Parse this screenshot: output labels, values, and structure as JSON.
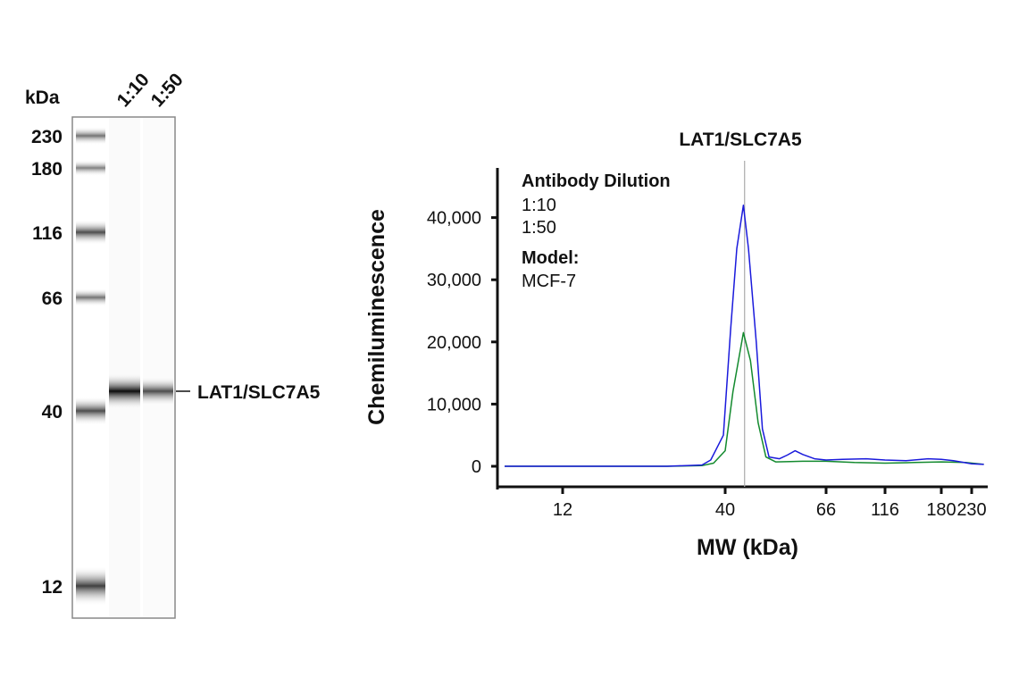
{
  "blot": {
    "unit_label": "kDa",
    "lane_labels": [
      "1:10",
      "1:50"
    ],
    "ladder": [
      "230",
      "180",
      "116",
      "66",
      "40",
      "12"
    ],
    "band_label": "LAT1/SLC7A5"
  },
  "chart_data": {
    "type": "line",
    "title": "LAT1/SLC7A5",
    "xlabel": "MW (kDa)",
    "ylabel": "Chemiluminescence",
    "x_ticks": [
      "12",
      "40",
      "66",
      "116",
      "180",
      "230"
    ],
    "y_ticks": [
      "0",
      "10,000",
      "20,000",
      "30,000",
      "40,000"
    ],
    "ylim": [
      0,
      47000
    ],
    "xlim": [
      2,
      250
    ],
    "x_scale": "nonlinear (electropherogram MW scale)",
    "grid": false,
    "reference_line_kDa": 45,
    "legend": {
      "heading": "Antibody Dilution",
      "model_heading": "Model:",
      "model": "MCF-7",
      "placement": "top-left"
    },
    "series": [
      {
        "name": "1:10",
        "color": "#1a1adc",
        "points": [
          [
            2,
            0
          ],
          [
            12,
            0
          ],
          [
            30,
            0
          ],
          [
            36,
            200
          ],
          [
            37.5,
            1000
          ],
          [
            39.7,
            5000
          ],
          [
            41.4,
            22000
          ],
          [
            43,
            35000
          ],
          [
            44.7,
            42000
          ],
          [
            46,
            35000
          ],
          [
            48,
            20000
          ],
          [
            49.6,
            6000
          ],
          [
            51.3,
            1500
          ],
          [
            54,
            1200
          ],
          [
            56,
            1800
          ],
          [
            58,
            2500
          ],
          [
            60,
            1900
          ],
          [
            63,
            1200
          ],
          [
            66,
            1000
          ],
          [
            80,
            1100
          ],
          [
            100,
            1200
          ],
          [
            116,
            1000
          ],
          [
            140,
            900
          ],
          [
            165,
            1200
          ],
          [
            180,
            1100
          ],
          [
            200,
            900
          ],
          [
            230,
            400
          ],
          [
            250,
            300
          ]
        ]
      },
      {
        "name": "1:50",
        "color": "#138a2e",
        "points": [
          [
            2,
            0
          ],
          [
            12,
            0
          ],
          [
            30,
            0
          ],
          [
            36,
            100
          ],
          [
            38,
            500
          ],
          [
            40,
            2500
          ],
          [
            42,
            12000
          ],
          [
            44.7,
            21500
          ],
          [
            46.5,
            17000
          ],
          [
            48.5,
            7000
          ],
          [
            50.5,
            1500
          ],
          [
            53,
            700
          ],
          [
            60,
            800
          ],
          [
            66,
            800
          ],
          [
            90,
            600
          ],
          [
            116,
            500
          ],
          [
            150,
            600
          ],
          [
            180,
            700
          ],
          [
            220,
            600
          ],
          [
            250,
            300
          ]
        ]
      }
    ]
  }
}
